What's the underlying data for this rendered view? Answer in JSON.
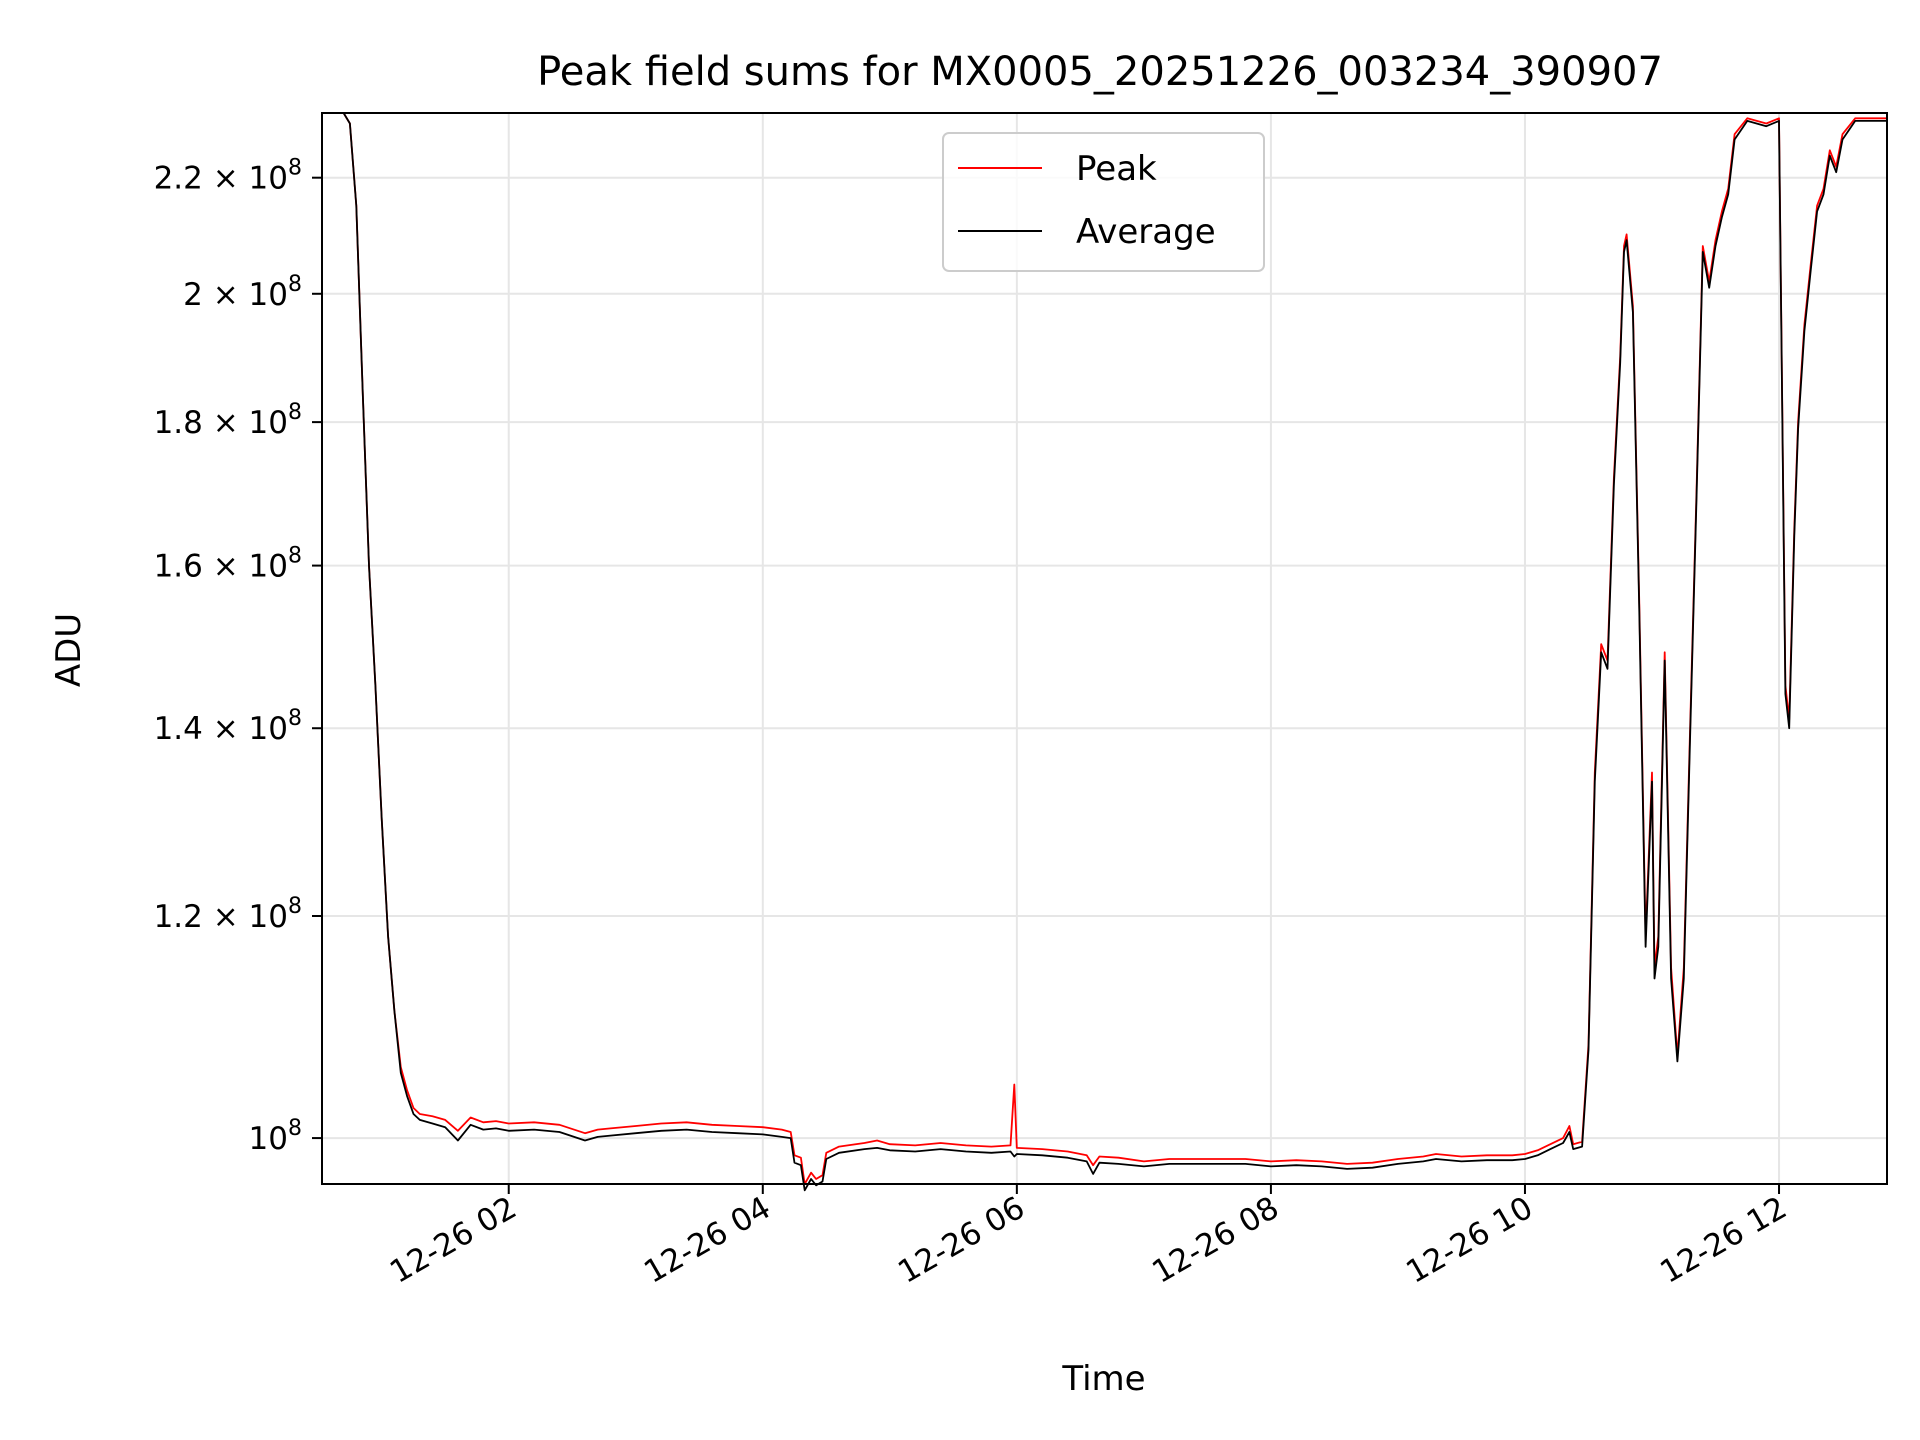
{
  "chart_data": {
    "type": "line",
    "title": "Peak field sums for MX0005_20251226_003234_390907",
    "xlabel": "Time",
    "ylabel": "ADU",
    "yscale": "log",
    "xlim_hours": [
      0.53,
      12.85
    ],
    "ylim": [
      96300000,
      232000000
    ],
    "grid": true,
    "legend_position": "top-center",
    "x_ticks": [
      {
        "hour": 2,
        "label": "12-26 02"
      },
      {
        "hour": 4,
        "label": "12-26 04"
      },
      {
        "hour": 6,
        "label": "12-26 06"
      },
      {
        "hour": 8,
        "label": "12-26 08"
      },
      {
        "hour": 10,
        "label": "12-26 10"
      },
      {
        "hour": 12,
        "label": "12-26 12"
      }
    ],
    "y_ticks": [
      {
        "value": 100000000,
        "mantissa": "",
        "exponent": "8"
      },
      {
        "value": 120000000,
        "mantissa": "1.2",
        "exponent": "8"
      },
      {
        "value": 140000000,
        "mantissa": "1.4",
        "exponent": "8"
      },
      {
        "value": 160000000,
        "mantissa": "1.6",
        "exponent": "8"
      },
      {
        "value": 180000000,
        "mantissa": "1.8",
        "exponent": "8"
      },
      {
        "value": 200000000,
        "mantissa": "2",
        "exponent": "8"
      },
      {
        "value": 220000000,
        "mantissa": "2.2",
        "exponent": "8"
      }
    ],
    "series": [
      {
        "name": "Peak",
        "color": "#ff0000",
        "points": [
          [
            0.53,
            232000000
          ],
          [
            0.7,
            232000000
          ],
          [
            0.75,
            230000000
          ],
          [
            0.8,
            215000000
          ],
          [
            0.85,
            185000000
          ],
          [
            0.9,
            160000000
          ],
          [
            0.95,
            145000000
          ],
          [
            1.0,
            130000000
          ],
          [
            1.05,
            118000000
          ],
          [
            1.1,
            111000000
          ],
          [
            1.15,
            106000000
          ],
          [
            1.2,
            104000000
          ],
          [
            1.25,
            102500000
          ],
          [
            1.3,
            102000000
          ],
          [
            1.4,
            101800000
          ],
          [
            1.5,
            101500000
          ],
          [
            1.6,
            100600000
          ],
          [
            1.7,
            101700000
          ],
          [
            1.8,
            101300000
          ],
          [
            1.9,
            101400000
          ],
          [
            2.0,
            101200000
          ],
          [
            2.2,
            101300000
          ],
          [
            2.4,
            101100000
          ],
          [
            2.6,
            100400000
          ],
          [
            2.7,
            100700000
          ],
          [
            2.8,
            100800000
          ],
          [
            3.0,
            101000000
          ],
          [
            3.2,
            101200000
          ],
          [
            3.4,
            101300000
          ],
          [
            3.6,
            101100000
          ],
          [
            3.8,
            101000000
          ],
          [
            4.0,
            100900000
          ],
          [
            4.15,
            100700000
          ],
          [
            4.22,
            100500000
          ],
          [
            4.25,
            98600000
          ],
          [
            4.3,
            98400000
          ],
          [
            4.33,
            96300000
          ],
          [
            4.38,
            97200000
          ],
          [
            4.42,
            96700000
          ],
          [
            4.47,
            97000000
          ],
          [
            4.5,
            98800000
          ],
          [
            4.6,
            99300000
          ],
          [
            4.8,
            99600000
          ],
          [
            4.9,
            99800000
          ],
          [
            5.0,
            99500000
          ],
          [
            5.2,
            99400000
          ],
          [
            5.4,
            99600000
          ],
          [
            5.6,
            99400000
          ],
          [
            5.8,
            99300000
          ],
          [
            5.95,
            99400000
          ],
          [
            5.98,
            104500000
          ],
          [
            6.0,
            99200000
          ],
          [
            6.2,
            99100000
          ],
          [
            6.4,
            98900000
          ],
          [
            6.55,
            98600000
          ],
          [
            6.6,
            97800000
          ],
          [
            6.65,
            98500000
          ],
          [
            6.8,
            98400000
          ],
          [
            7.0,
            98100000
          ],
          [
            7.2,
            98300000
          ],
          [
            7.4,
            98300000
          ],
          [
            7.6,
            98300000
          ],
          [
            7.8,
            98300000
          ],
          [
            8.0,
            98100000
          ],
          [
            8.2,
            98200000
          ],
          [
            8.4,
            98100000
          ],
          [
            8.6,
            97900000
          ],
          [
            8.8,
            98000000
          ],
          [
            9.0,
            98300000
          ],
          [
            9.2,
            98500000
          ],
          [
            9.3,
            98700000
          ],
          [
            9.5,
            98500000
          ],
          [
            9.7,
            98600000
          ],
          [
            9.9,
            98600000
          ],
          [
            10.0,
            98700000
          ],
          [
            10.1,
            99000000
          ],
          [
            10.2,
            99500000
          ],
          [
            10.3,
            100000000
          ],
          [
            10.35,
            101000000
          ],
          [
            10.38,
            99500000
          ],
          [
            10.45,
            99700000
          ],
          [
            10.5,
            108000000
          ],
          [
            10.55,
            135000000
          ],
          [
            10.6,
            150000000
          ],
          [
            10.65,
            148000000
          ],
          [
            10.7,
            172000000
          ],
          [
            10.75,
            190000000
          ],
          [
            10.78,
            208000000
          ],
          [
            10.8,
            210000000
          ],
          [
            10.85,
            198000000
          ],
          [
            10.9,
            155000000
          ],
          [
            10.95,
            118000000
          ],
          [
            11.0,
            135000000
          ],
          [
            11.02,
            115000000
          ],
          [
            11.05,
            118000000
          ],
          [
            11.1,
            149000000
          ],
          [
            11.15,
            115000000
          ],
          [
            11.2,
            107000000
          ],
          [
            11.25,
            115000000
          ],
          [
            11.3,
            140000000
          ],
          [
            11.35,
            170000000
          ],
          [
            11.4,
            208000000
          ],
          [
            11.45,
            202000000
          ],
          [
            11.5,
            209000000
          ],
          [
            11.55,
            214000000
          ],
          [
            11.6,
            218000000
          ],
          [
            11.65,
            228000000
          ],
          [
            11.75,
            231000000
          ],
          [
            11.9,
            230000000
          ],
          [
            12.0,
            231000000
          ],
          [
            12.05,
            145000000
          ],
          [
            12.08,
            141000000
          ],
          [
            12.12,
            165000000
          ],
          [
            12.15,
            180000000
          ],
          [
            12.2,
            195000000
          ],
          [
            12.25,
            205000000
          ],
          [
            12.3,
            215000000
          ],
          [
            12.35,
            218000000
          ],
          [
            12.4,
            225000000
          ],
          [
            12.45,
            222000000
          ],
          [
            12.5,
            228000000
          ],
          [
            12.6,
            231000000
          ],
          [
            12.7,
            231000000
          ],
          [
            12.85,
            231000000
          ]
        ]
      },
      {
        "name": "Average",
        "color": "#000000",
        "points": [
          [
            0.53,
            232000000
          ],
          [
            0.7,
            232000000
          ],
          [
            0.75,
            230000000
          ],
          [
            0.8,
            215000000
          ],
          [
            0.85,
            185000000
          ],
          [
            0.9,
            160000000
          ],
          [
            0.95,
            145000000
          ],
          [
            1.0,
            130000000
          ],
          [
            1.05,
            118000000
          ],
          [
            1.1,
            111000000
          ],
          [
            1.15,
            105500000
          ],
          [
            1.2,
            103500000
          ],
          [
            1.25,
            102000000
          ],
          [
            1.3,
            101500000
          ],
          [
            1.4,
            101200000
          ],
          [
            1.5,
            100900000
          ],
          [
            1.6,
            99800000
          ],
          [
            1.7,
            101100000
          ],
          [
            1.8,
            100700000
          ],
          [
            1.9,
            100800000
          ],
          [
            2.0,
            100600000
          ],
          [
            2.2,
            100700000
          ],
          [
            2.4,
            100500000
          ],
          [
            2.6,
            99800000
          ],
          [
            2.7,
            100100000
          ],
          [
            2.8,
            100200000
          ],
          [
            3.0,
            100400000
          ],
          [
            3.2,
            100600000
          ],
          [
            3.4,
            100700000
          ],
          [
            3.6,
            100500000
          ],
          [
            3.8,
            100400000
          ],
          [
            4.0,
            100300000
          ],
          [
            4.15,
            100100000
          ],
          [
            4.22,
            100000000
          ],
          [
            4.25,
            98000000
          ],
          [
            4.3,
            97800000
          ],
          [
            4.33,
            95800000
          ],
          [
            4.38,
            96700000
          ],
          [
            4.42,
            96200000
          ],
          [
            4.47,
            96500000
          ],
          [
            4.5,
            98300000
          ],
          [
            4.6,
            98800000
          ],
          [
            4.8,
            99100000
          ],
          [
            4.9,
            99200000
          ],
          [
            5.0,
            99000000
          ],
          [
            5.2,
            98900000
          ],
          [
            5.4,
            99100000
          ],
          [
            5.6,
            98900000
          ],
          [
            5.8,
            98800000
          ],
          [
            5.95,
            98900000
          ],
          [
            5.98,
            98500000
          ],
          [
            6.0,
            98700000
          ],
          [
            6.2,
            98600000
          ],
          [
            6.4,
            98400000
          ],
          [
            6.55,
            98100000
          ],
          [
            6.6,
            97100000
          ],
          [
            6.65,
            98000000
          ],
          [
            6.8,
            97900000
          ],
          [
            7.0,
            97700000
          ],
          [
            7.2,
            97900000
          ],
          [
            7.4,
            97900000
          ],
          [
            7.6,
            97900000
          ],
          [
            7.8,
            97900000
          ],
          [
            8.0,
            97700000
          ],
          [
            8.2,
            97800000
          ],
          [
            8.4,
            97700000
          ],
          [
            8.6,
            97500000
          ],
          [
            8.8,
            97600000
          ],
          [
            9.0,
            97900000
          ],
          [
            9.2,
            98100000
          ],
          [
            9.3,
            98300000
          ],
          [
            9.5,
            98100000
          ],
          [
            9.7,
            98200000
          ],
          [
            9.9,
            98200000
          ],
          [
            10.0,
            98300000
          ],
          [
            10.1,
            98600000
          ],
          [
            10.2,
            99100000
          ],
          [
            10.3,
            99600000
          ],
          [
            10.35,
            100500000
          ],
          [
            10.38,
            99100000
          ],
          [
            10.45,
            99300000
          ],
          [
            10.5,
            107500000
          ],
          [
            10.55,
            134000000
          ],
          [
            10.6,
            149000000
          ],
          [
            10.65,
            147000000
          ],
          [
            10.7,
            171000000
          ],
          [
            10.75,
            189000000
          ],
          [
            10.78,
            207000000
          ],
          [
            10.8,
            209000000
          ],
          [
            10.85,
            197000000
          ],
          [
            10.9,
            154000000
          ],
          [
            10.95,
            117000000
          ],
          [
            11.0,
            134000000
          ],
          [
            11.02,
            114000000
          ],
          [
            11.05,
            117000000
          ],
          [
            11.1,
            148000000
          ],
          [
            11.15,
            114000000
          ],
          [
            11.2,
            106500000
          ],
          [
            11.25,
            114000000
          ],
          [
            11.3,
            139000000
          ],
          [
            11.35,
            169000000
          ],
          [
            11.4,
            207000000
          ],
          [
            11.45,
            201000000
          ],
          [
            11.5,
            208000000
          ],
          [
            11.55,
            213000000
          ],
          [
            11.6,
            217000000
          ],
          [
            11.65,
            227000000
          ],
          [
            11.75,
            230500000
          ],
          [
            11.9,
            229500000
          ],
          [
            12.0,
            230500000
          ],
          [
            12.05,
            144000000
          ],
          [
            12.08,
            140000000
          ],
          [
            12.12,
            164000000
          ],
          [
            12.15,
            179000000
          ],
          [
            12.2,
            194000000
          ],
          [
            12.25,
            204000000
          ],
          [
            12.3,
            214000000
          ],
          [
            12.35,
            217000000
          ],
          [
            12.4,
            224000000
          ],
          [
            12.45,
            221000000
          ],
          [
            12.5,
            227000000
          ],
          [
            12.6,
            230500000
          ],
          [
            12.7,
            230500000
          ],
          [
            12.85,
            230500000
          ]
        ]
      }
    ]
  }
}
